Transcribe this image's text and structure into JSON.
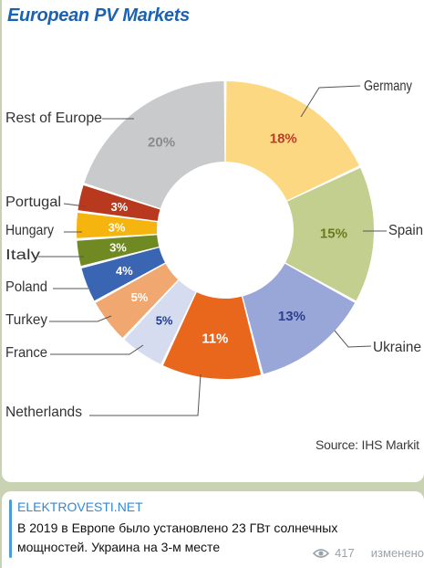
{
  "post": {
    "site": "ELEKTROVESTI.NET",
    "text": "В 2019 в Европе было установлено 23 ГВт солнечных мощностей. Украина на 3-м месте",
    "views": "417",
    "edited": "изменено",
    "icon": "eye-icon"
  },
  "chart_data": {
    "type": "pie",
    "title": "European PV Markets",
    "source": "Source: IHS Markit",
    "categories": [
      "Germany",
      "Spain",
      "Ukraine",
      "Netherlands",
      "France",
      "Turkey",
      "Poland",
      "Italy",
      "Hungary",
      "Portugal",
      "Rest of Europe"
    ],
    "values": [
      18,
      15,
      13,
      11,
      5,
      5,
      4,
      3,
      3,
      3,
      20
    ],
    "value_labels": [
      "18%",
      "15%",
      "13%",
      "11%",
      "5%",
      "5%",
      "4%",
      "3%",
      "3%",
      "3%",
      "20%"
    ],
    "colors": [
      "#fdd882",
      "#c2cf8f",
      "#99a6d8",
      "#e8671c",
      "#d6dcef",
      "#f0a870",
      "#3a65b3",
      "#6f8a22",
      "#f6b40f",
      "#b8391d",
      "#c9cacc"
    ],
    "label_colors": [
      "#c0392b",
      "#6b7a1f",
      "#2f3f8f",
      "#ffffff",
      "#1e3c8e",
      "#ffffff",
      "#ffffff",
      "#ffffff",
      "#ffffff",
      "#ffffff",
      "#8a8a8a"
    ],
    "donut": true
  }
}
